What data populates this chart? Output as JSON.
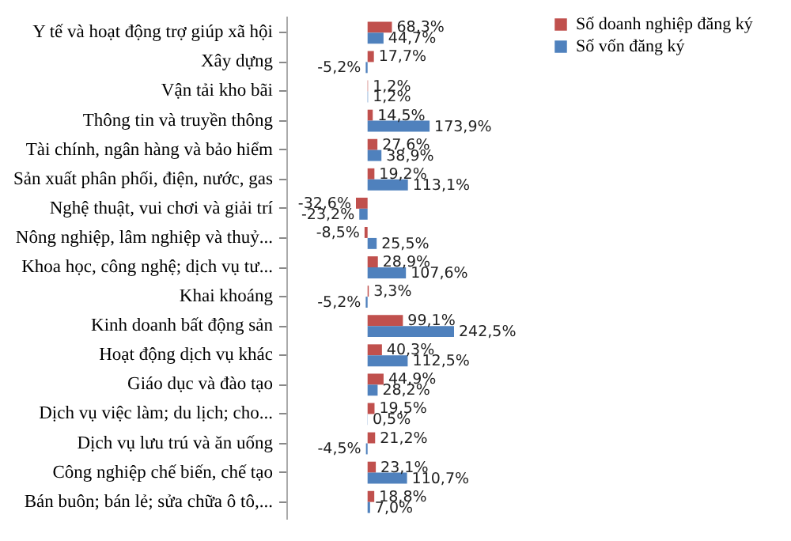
{
  "chart_data": {
    "type": "bar",
    "orientation": "horizontal",
    "categories": [
      "Y tế và hoạt động trợ giúp xã  hội",
      "Xây dựng",
      "Vận tải kho bãi",
      "Thông tin và truyền thông",
      "Tài chính, ngân hàng và bảo hiểm",
      "Sản xuất  phân phối, điện, nước, gas",
      "Nghệ thuật, vui chơi và giải trí",
      "Nông nghiệp, lâm  nghiệp và thuỷ...",
      "Khoa học, công nghệ; dịch vụ tư...",
      "Khai khoáng",
      "Kinh  doanh bất động sản",
      "Hoạt động dịch vụ khác",
      "Giáo  dục và đào tạo",
      "Dịch vụ việc làm;  du lịch; cho...",
      "Dịch vụ lưu trú và ăn uống",
      "Công nghiệp chế biến, chế tạo",
      "Bán buôn; bán lẻ;  sửa chữa ô tô,..."
    ],
    "series": [
      {
        "name": "Số doanh nghiệp đăng ký",
        "color": "#c0504d",
        "values": [
          68.3,
          17.7,
          1.2,
          14.5,
          27.6,
          19.2,
          -32.6,
          -8.5,
          28.9,
          3.3,
          99.1,
          40.3,
          44.9,
          19.5,
          21.2,
          23.1,
          18.8
        ],
        "value_labels": [
          "68,3%",
          "17,7%",
          "1,2%",
          "14,5%",
          "27,6%",
          "19,2%",
          "-32,6%",
          "-8,5%",
          "28,9%",
          "3,3%",
          "99,1%",
          "40,3%",
          "44,9%",
          "19,5%",
          "21,2%",
          "23,1%",
          "18,8%"
        ]
      },
      {
        "name": "Số vốn đăng ký",
        "color": "#4f81bd",
        "values": [
          44.7,
          -5.2,
          1.2,
          173.9,
          38.9,
          113.1,
          -23.2,
          25.5,
          107.6,
          -5.2,
          242.5,
          112.5,
          28.2,
          0.5,
          -4.5,
          110.7,
          7.0
        ],
        "value_labels": [
          "44,7%",
          "-5,2%",
          "1,2%",
          "173,9%",
          "38,9%",
          "113,1%",
          "-23,2%",
          "25,5%",
          "107,6%",
          "-5,2%",
          "242,5%",
          "112,5%",
          "28,2%",
          "0,5%",
          "-4,5%",
          "110,7%",
          "7,0%"
        ]
      }
    ],
    "tick_labels": "y",
    "legend": "right"
  }
}
